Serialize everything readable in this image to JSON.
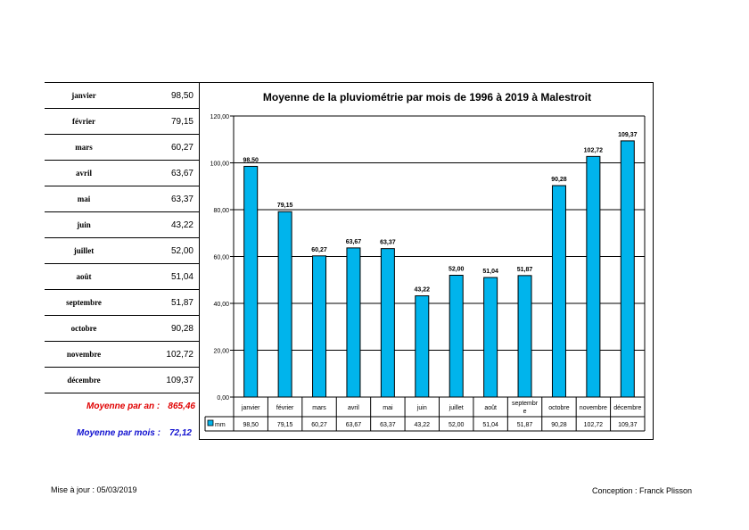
{
  "chart_data": {
    "type": "bar",
    "title": "Moyenne de la pluviométrie par mois de 1996 à 2019 à Malestroit",
    "categories": [
      "janvier",
      "février",
      "mars",
      "avril",
      "mai",
      "juin",
      "juillet",
      "août",
      "septembre",
      "octobre",
      "novembre",
      "décembre"
    ],
    "category_display": [
      [
        "janvier"
      ],
      [
        "février"
      ],
      [
        "mars"
      ],
      [
        "avril"
      ],
      [
        "mai"
      ],
      [
        "juin"
      ],
      [
        "juillet"
      ],
      [
        "août"
      ],
      [
        "septembr",
        "e"
      ],
      [
        "octobre"
      ],
      [
        "novembre"
      ],
      [
        "décembre"
      ]
    ],
    "series": [
      {
        "name": "mm",
        "values": [
          98.5,
          79.15,
          60.27,
          63.67,
          63.37,
          43.22,
          52.0,
          51.04,
          51.87,
          90.28,
          102.72,
          109.37
        ]
      }
    ],
    "value_labels": [
      "98,50",
      "79,15",
      "60,27",
      "63,67",
      "63,37",
      "43,22",
      "52,00",
      "51,04",
      "51,87",
      "90,28",
      "102,72",
      "109,37"
    ],
    "ylim": [
      0,
      120
    ],
    "yticks": [
      0,
      20,
      40,
      60,
      80,
      100,
      120
    ],
    "ytick_labels": [
      "0,00",
      "20,00",
      "40,00",
      "60,00",
      "80,00",
      "100,00",
      "120,00"
    ],
    "grid": true,
    "legend": "data-table",
    "bar_color": "#00b4ec"
  },
  "left_table": {
    "rows": [
      {
        "month": "janvier",
        "value": "98,50"
      },
      {
        "month": "février",
        "value": "79,15"
      },
      {
        "month": "mars",
        "value": "60,27"
      },
      {
        "month": "avril",
        "value": "63,67"
      },
      {
        "month": "mai",
        "value": "63,37"
      },
      {
        "month": "juin",
        "value": "43,22"
      },
      {
        "month": "juillet",
        "value": "52,00"
      },
      {
        "month": "août",
        "value": "51,04"
      },
      {
        "month": "septembre",
        "value": "51,87"
      },
      {
        "month": "octobre",
        "value": "90,28"
      },
      {
        "month": "novembre",
        "value": "102,72"
      },
      {
        "month": "décembre",
        "value": "109,37"
      }
    ]
  },
  "summary": {
    "year_label": "Moyenne par an :",
    "year_value": "865,46",
    "month_label": "Moyenne par mois :",
    "month_value": "72,12",
    "year_color": "#e00000",
    "month_color": "#1010d0"
  },
  "footer": {
    "updated": "Mise à jour : 05/03/2019",
    "credit": "Conception : Franck Plisson"
  }
}
